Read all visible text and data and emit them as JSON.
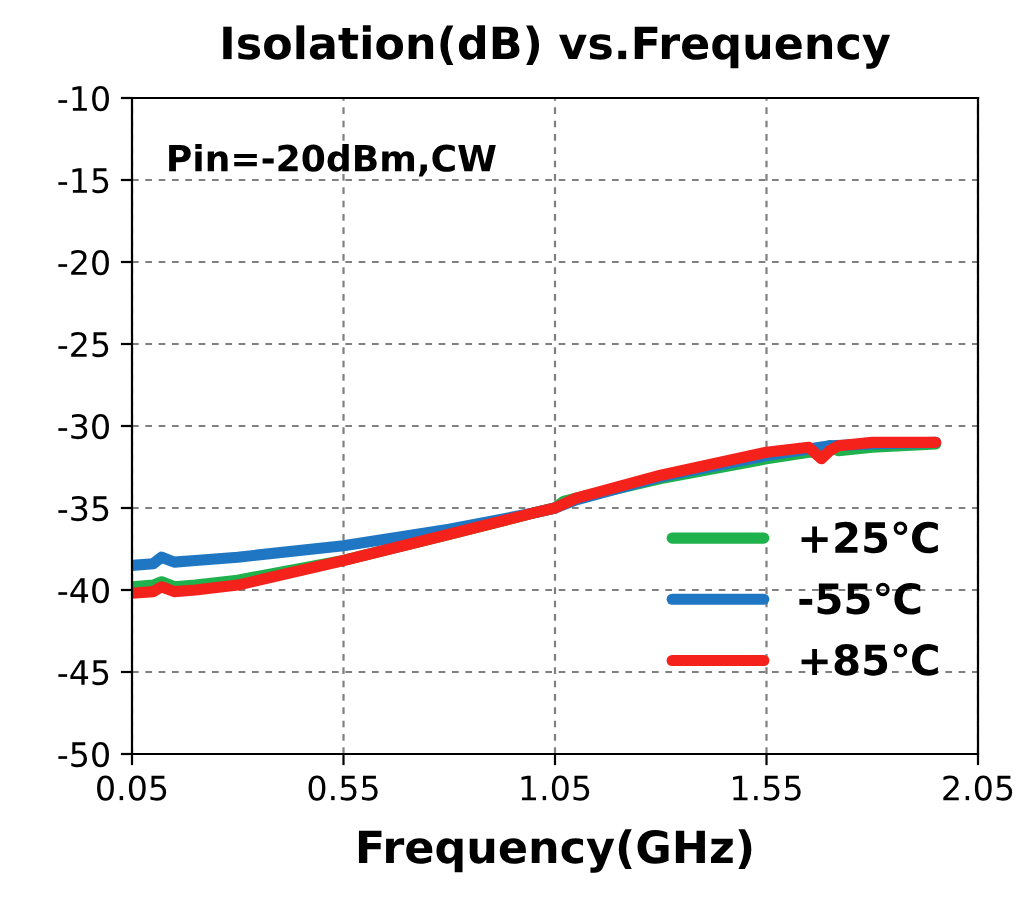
{
  "chart_data": {
    "type": "line",
    "title": "Isolation(dB) vs.Frequency",
    "xlabel": "Frequency(GHz)",
    "annotations": [
      "Pin=-20dBm,CW"
    ],
    "xlim": [
      0.05,
      2.05
    ],
    "xticks": [
      0.05,
      0.55,
      1.05,
      1.55,
      2.05
    ],
    "ylim": [
      -50,
      -10
    ],
    "yticks": [
      -50,
      -45,
      -40,
      -35,
      -30,
      -25,
      -20,
      -15,
      -10
    ],
    "grid": true,
    "legend": "bottom right",
    "line_style": "solid",
    "marker": "none",
    "series": [
      {
        "name": "+25℃",
        "color": "#1fb14b",
        "x": [
          0.05,
          0.1,
          0.12,
          0.15,
          0.2,
          0.3,
          0.55,
          0.8,
          1.0,
          1.05,
          1.07,
          1.1,
          1.3,
          1.55,
          1.65,
          1.69,
          1.7,
          1.72,
          1.8,
          1.95
        ],
        "values": [
          -39.8,
          -39.7,
          -39.5,
          -39.8,
          -39.7,
          -39.4,
          -38.2,
          -36.6,
          -35.3,
          -35.0,
          -34.6,
          -34.4,
          -33.2,
          -32.0,
          -31.6,
          -31.6,
          -31.2,
          -31.5,
          -31.3,
          -31.1
        ]
      },
      {
        "name": "-55℃",
        "color": "#1f77c4",
        "x": [
          0.05,
          0.1,
          0.12,
          0.15,
          0.2,
          0.3,
          0.55,
          0.8,
          1.0,
          1.05,
          1.1,
          1.3,
          1.55,
          1.65,
          1.7,
          1.8,
          1.95
        ],
        "values": [
          -38.5,
          -38.4,
          -38.0,
          -38.3,
          -38.2,
          -38.0,
          -37.3,
          -36.3,
          -35.3,
          -35.0,
          -34.5,
          -33.1,
          -31.8,
          -31.4,
          -31.2,
          -31.1,
          -31.0
        ]
      },
      {
        "name": "+85℃",
        "color": "#f5211b",
        "x": [
          0.05,
          0.1,
          0.12,
          0.15,
          0.2,
          0.3,
          0.55,
          0.8,
          1.0,
          1.05,
          1.1,
          1.3,
          1.55,
          1.65,
          1.68,
          1.7,
          1.72,
          1.8,
          1.95
        ],
        "values": [
          -40.2,
          -40.1,
          -39.8,
          -40.1,
          -40.0,
          -39.7,
          -38.2,
          -36.6,
          -35.3,
          -35.0,
          -34.4,
          -33.0,
          -31.6,
          -31.3,
          -32.0,
          -31.5,
          -31.2,
          -31.0,
          -31.0
        ]
      }
    ]
  }
}
